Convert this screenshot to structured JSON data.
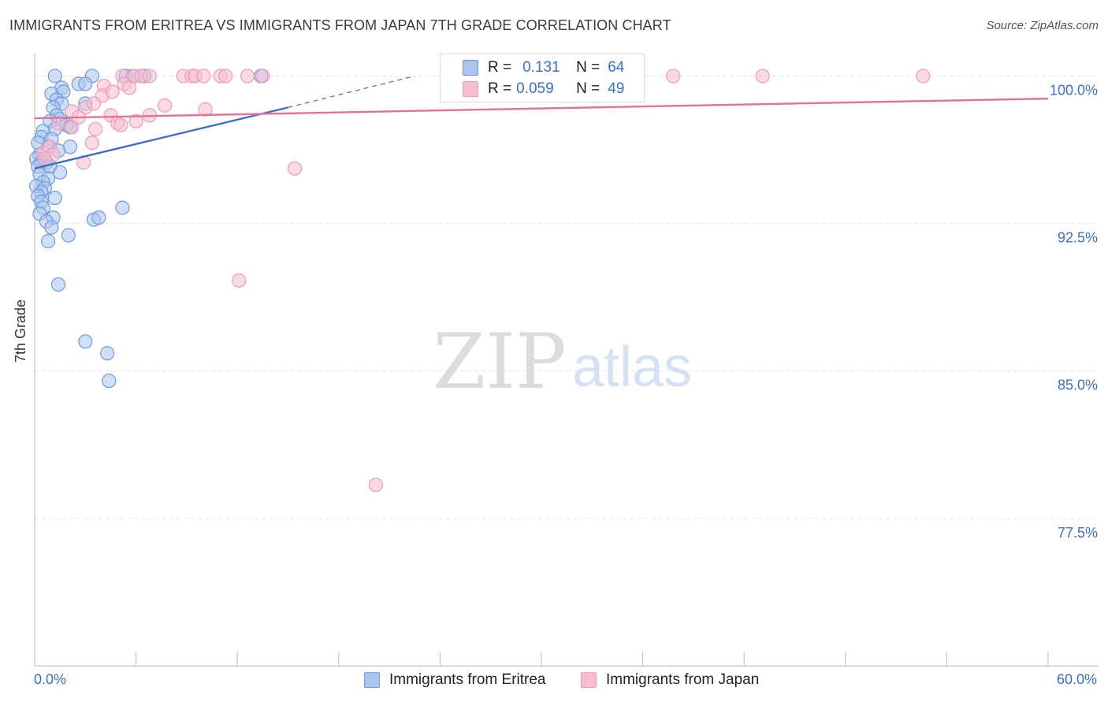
{
  "header": {
    "title": "IMMIGRANTS FROM ERITREA VS IMMIGRANTS FROM JAPAN 7TH GRADE CORRELATION CHART",
    "source": "Source: ZipAtlas.com"
  },
  "watermark": {
    "zip": "ZIP",
    "atlas": "atlas"
  },
  "legend": {
    "rows": [
      {
        "r_label": "R =",
        "r_value": "0.131",
        "n_label": "N =",
        "n_value": "64"
      },
      {
        "r_label": "R =",
        "r_value": "0.059",
        "n_label": "N =",
        "n_value": "49"
      }
    ]
  },
  "bottom_legend": [
    "Immigrants from Eritrea",
    "Immigrants from Japan"
  ],
  "x_labels": {
    "left": "0.0%",
    "right": "60.0%"
  },
  "colors": {
    "blue": "#3b6fc6",
    "blue_fill": "#aac4ee",
    "blue_stroke": "#6f9bdc",
    "pink": "#e5719b",
    "pink_fill": "#f6bdd0",
    "pink_stroke": "#ef9ab8",
    "grid": "#e3e3e3",
    "axis": "#bbbbbb"
  },
  "chart_data": {
    "type": "scatter",
    "title": "IMMIGRANTS FROM ERITREA VS IMMIGRANTS FROM JAPAN 7TH GRADE CORRELATION CHART",
    "xlabel": "",
    "ylabel": "7th Grade",
    "xlim": [
      0,
      60
    ],
    "ylim": [
      70,
      101.3
    ],
    "y_ticks": [
      {
        "value": 100.0,
        "label": "100.0%"
      },
      {
        "value": 92.5,
        "label": "92.5%"
      },
      {
        "value": 85.0,
        "label": "85.0%"
      },
      {
        "value": 77.5,
        "label": "77.5%"
      }
    ],
    "grid": true,
    "legend_position": "top-center",
    "series": [
      {
        "name": "Immigrants from Eritrea",
        "color": "#3b6fc6",
        "points": [
          [
            1.2,
            100.0
          ],
          [
            3.4,
            100.0
          ],
          [
            2.6,
            99.6
          ],
          [
            3.0,
            99.6
          ],
          [
            1.6,
            99.4
          ],
          [
            5.4,
            100.0
          ],
          [
            5.8,
            100.0
          ],
          [
            6.5,
            100.0
          ],
          [
            13.4,
            100.0
          ],
          [
            1.0,
            99.1
          ],
          [
            1.7,
            99.2
          ],
          [
            1.3,
            98.8
          ],
          [
            1.6,
            98.6
          ],
          [
            3.0,
            98.6
          ],
          [
            1.1,
            98.4
          ],
          [
            1.3,
            98.0
          ],
          [
            1.5,
            97.8
          ],
          [
            0.9,
            97.7
          ],
          [
            1.9,
            97.5
          ],
          [
            2.1,
            97.4
          ],
          [
            1.2,
            97.3
          ],
          [
            0.5,
            97.2
          ],
          [
            0.4,
            96.9
          ],
          [
            1.0,
            96.8
          ],
          [
            0.2,
            96.6
          ],
          [
            0.8,
            96.4
          ],
          [
            2.1,
            96.4
          ],
          [
            1.4,
            96.2
          ],
          [
            0.3,
            96.0
          ],
          [
            0.6,
            95.8
          ],
          [
            0.1,
            95.8
          ],
          [
            0.4,
            95.6
          ],
          [
            0.7,
            95.6
          ],
          [
            0.9,
            95.4
          ],
          [
            0.2,
            95.4
          ],
          [
            1.5,
            95.1
          ],
          [
            0.3,
            95.0
          ],
          [
            0.8,
            94.8
          ],
          [
            0.5,
            94.6
          ],
          [
            0.1,
            94.4
          ],
          [
            0.6,
            94.3
          ],
          [
            0.4,
            94.1
          ],
          [
            0.2,
            93.9
          ],
          [
            1.2,
            93.8
          ],
          [
            0.4,
            93.6
          ],
          [
            0.5,
            93.3
          ],
          [
            0.3,
            93.0
          ],
          [
            1.1,
            92.8
          ],
          [
            0.7,
            92.6
          ],
          [
            3.5,
            92.7
          ],
          [
            3.8,
            92.8
          ],
          [
            5.2,
            93.3
          ],
          [
            1.0,
            92.3
          ],
          [
            2.0,
            91.9
          ],
          [
            0.8,
            91.6
          ],
          [
            1.4,
            89.4
          ],
          [
            3.0,
            86.5
          ],
          [
            4.3,
            85.9
          ],
          [
            4.4,
            84.5
          ]
        ],
        "trendline": {
          "from": [
            0,
            95.3
          ],
          "to": [
            15,
            98.4
          ],
          "dashed_to": [
            22.5,
            100.0
          ]
        },
        "legend_r": "0.131",
        "legend_n": "64"
      },
      {
        "name": "Immigrants from Japan",
        "color": "#e5719b",
        "points": [
          [
            5.2,
            100.0
          ],
          [
            5.9,
            100.0
          ],
          [
            6.3,
            100.0
          ],
          [
            6.8,
            100.0
          ],
          [
            8.8,
            100.0
          ],
          [
            9.3,
            100.0
          ],
          [
            9.5,
            100.0
          ],
          [
            10.0,
            100.0
          ],
          [
            11.0,
            100.0
          ],
          [
            11.3,
            100.0
          ],
          [
            12.6,
            100.0
          ],
          [
            13.5,
            100.0
          ],
          [
            28.4,
            100.0
          ],
          [
            37.8,
            100.0
          ],
          [
            43.1,
            100.0
          ],
          [
            52.6,
            100.0
          ],
          [
            4.1,
            99.5
          ],
          [
            5.3,
            99.6
          ],
          [
            5.6,
            99.4
          ],
          [
            4.0,
            99.0
          ],
          [
            4.6,
            99.2
          ],
          [
            3.0,
            98.4
          ],
          [
            3.5,
            98.6
          ],
          [
            7.7,
            98.5
          ],
          [
            10.1,
            98.3
          ],
          [
            2.2,
            98.2
          ],
          [
            4.5,
            98.0
          ],
          [
            6.8,
            98.0
          ],
          [
            2.6,
            97.9
          ],
          [
            4.9,
            97.6
          ],
          [
            6.0,
            97.7
          ],
          [
            5.1,
            97.5
          ],
          [
            3.6,
            97.3
          ],
          [
            2.2,
            97.4
          ],
          [
            1.4,
            97.6
          ],
          [
            3.4,
            96.6
          ],
          [
            0.9,
            96.4
          ],
          [
            0.5,
            96.1
          ],
          [
            1.1,
            96.0
          ],
          [
            0.6,
            95.8
          ],
          [
            2.9,
            95.6
          ],
          [
            15.4,
            95.3
          ],
          [
            12.1,
            89.6
          ],
          [
            20.2,
            79.2
          ]
        ],
        "trendline": {
          "from": [
            0,
            97.85
          ],
          "to": [
            60,
            98.85
          ]
        },
        "legend_r": "0.059",
        "legend_n": "49"
      }
    ]
  }
}
